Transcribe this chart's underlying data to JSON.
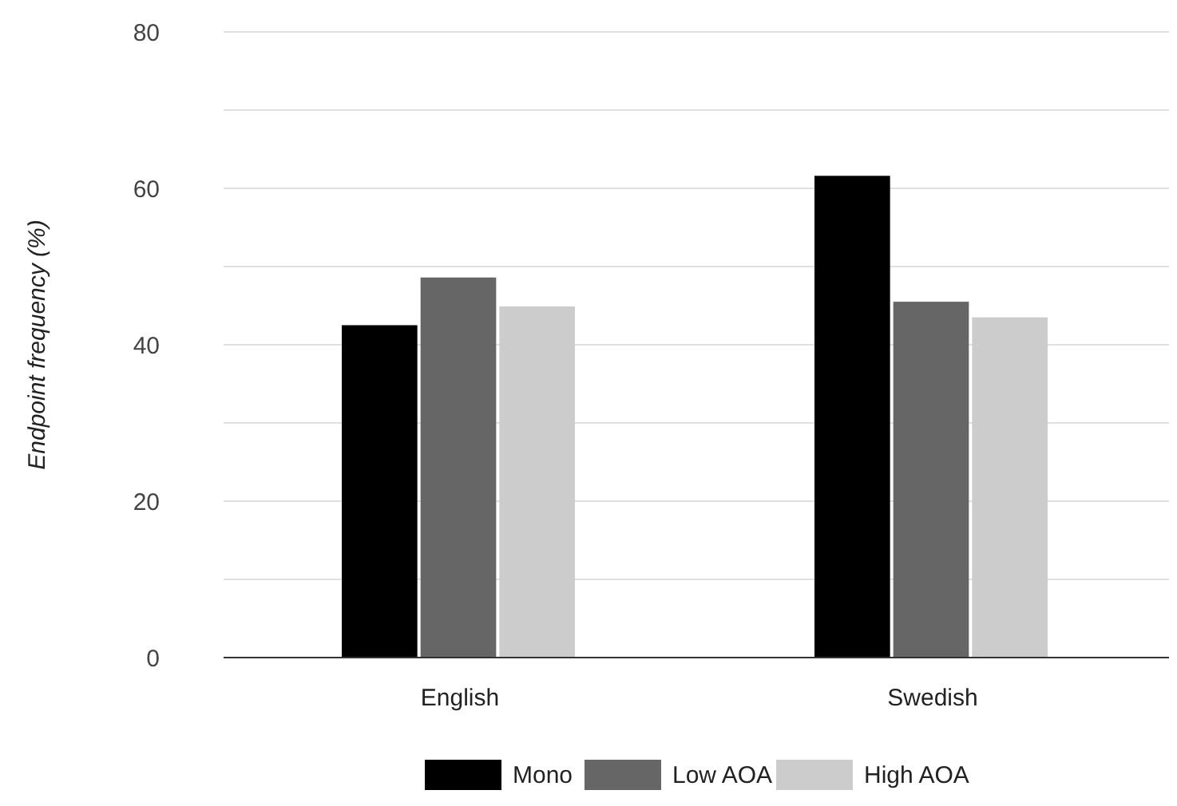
{
  "chart_data": {
    "type": "bar",
    "ylabel": "Endpoint frequency (%)",
    "categories": [
      "English",
      "Swedish"
    ],
    "series": [
      {
        "name": "Mono",
        "color": "#000000",
        "values": [
          42.5,
          61.6
        ]
      },
      {
        "name": "Low AOA",
        "color": "#666666",
        "values": [
          48.6,
          45.5
        ]
      },
      {
        "name": "High AOA",
        "color": "#cccccc",
        "values": [
          44.9,
          43.5
        ]
      }
    ],
    "ylim": [
      0,
      80
    ],
    "yticks": [
      0,
      {
        "value": 10,
        "label": null
      },
      20,
      {
        "value": 30,
        "label": null
      },
      40,
      {
        "value": 50,
        "label": null
      },
      60,
      {
        "value": 70,
        "label": null
      },
      80
    ],
    "grid": true,
    "legend": "bottom"
  }
}
